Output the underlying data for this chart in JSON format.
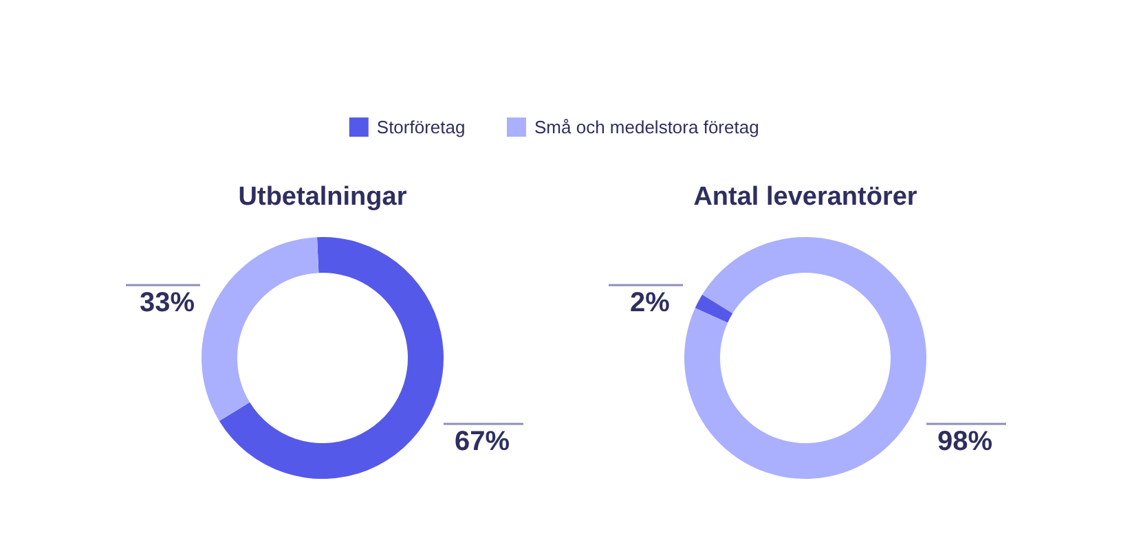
{
  "chart_data": [
    {
      "type": "donut",
      "title": "Utbetalningar",
      "categories": [
        "Storföretag",
        "Små och medelstora företag"
      ],
      "values": [
        67,
        33
      ],
      "colors": [
        "#5559ea",
        "#aab0fe"
      ],
      "value_labels": [
        "67%",
        "33%"
      ],
      "legend": "top"
    },
    {
      "type": "donut",
      "title": "Antal leverantörer",
      "categories": [
        null,
        null
      ],
      "values": [
        2,
        98
      ],
      "colors": [
        "#5559ea",
        "#aab0fe"
      ],
      "value_labels": [
        "2%",
        "98%"
      ]
    }
  ]
}
